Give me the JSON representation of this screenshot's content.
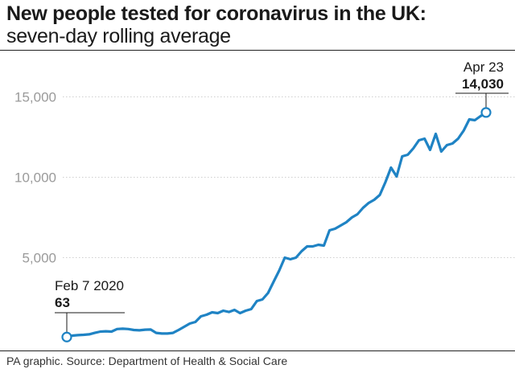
{
  "title": "New people tested for coronavirus in the UK:",
  "subtitle": "seven-day rolling average",
  "source": "PA graphic. Source: Department of Health & Social Care",
  "chart_data": {
    "type": "line",
    "title": "New people tested for coronavirus in the UK:",
    "subtitle": "seven-day rolling average",
    "ylim": [
      0,
      15000
    ],
    "yticks": [
      5000,
      10000,
      15000
    ],
    "ytick_labels": [
      "5,000",
      "10,000",
      "15,000"
    ],
    "grid": true,
    "color": "#1f83c4",
    "annotations": [
      {
        "date": "Feb 7 2020",
        "label": "Feb 7 2020",
        "value_label": "63"
      },
      {
        "date": "Apr 23",
        "label": "Apr 23",
        "value_label": "14,030"
      }
    ],
    "series": [
      {
        "values": [
          63,
          150,
          180,
          200,
          230,
          320,
          400,
          420,
          400,
          560,
          580,
          560,
          500,
          480,
          520,
          530,
          320,
          280,
          280,
          320,
          500,
          700,
          900,
          1000,
          1350,
          1450,
          1600,
          1550,
          1700,
          1620,
          1750,
          1550,
          1700,
          1800,
          2300,
          2400,
          2800,
          3500,
          4200,
          5000,
          4900,
          5000,
          5400,
          5700,
          5700,
          5800,
          5750,
          6700,
          6800,
          7000,
          7200,
          7500,
          7700,
          8100,
          8400,
          8600,
          8900,
          9700,
          10600,
          10050,
          11300,
          11400,
          11800,
          12300,
          12400,
          11700,
          12700,
          11600,
          12000,
          12100,
          12400,
          12900,
          13600,
          13550,
          13800,
          14030
        ]
      }
    ]
  }
}
